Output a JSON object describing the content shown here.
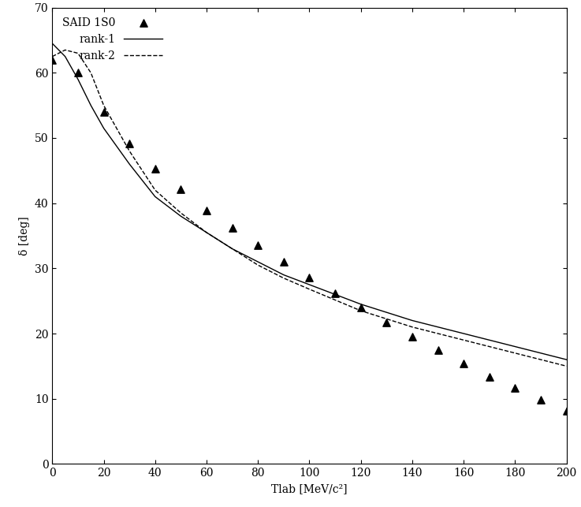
{
  "chart_data": {
    "type": "line",
    "x_label": "Tlab [MeV/c²]",
    "y_label": "δ [deg]",
    "xlim": [
      0,
      200
    ],
    "ylim": [
      0,
      70
    ],
    "xticks": [
      0,
      20,
      40,
      60,
      80,
      100,
      120,
      140,
      160,
      180,
      200
    ],
    "yticks": [
      0,
      10,
      20,
      30,
      40,
      50,
      60,
      70
    ],
    "legend": "upper left",
    "grid": false,
    "series": [
      {
        "name": "SAID 1S0",
        "type": "scatter",
        "marker": "triangle",
        "color": "#000000",
        "x": [
          0,
          10,
          20,
          30,
          40,
          50,
          60,
          70,
          80,
          90,
          100,
          110,
          120,
          130,
          140,
          150,
          160,
          170,
          180,
          190,
          200
        ],
        "values": [
          62,
          60,
          54,
          49.2,
          45.3,
          42.1,
          38.9,
          36.2,
          33.6,
          31.0,
          28.6,
          26.2,
          24.0,
          21.7,
          19.5,
          17.5,
          15.4,
          13.4,
          11.6,
          9.9,
          8.2
        ]
      },
      {
        "name": "rank-1",
        "type": "line",
        "line_style": "solid",
        "color": "#000000",
        "x": [
          0,
          5,
          10,
          15,
          20,
          30,
          40,
          50,
          60,
          70,
          80,
          90,
          100,
          120,
          140,
          160,
          180,
          200
        ],
        "values": [
          64.5,
          62.5,
          59,
          55,
          51.5,
          46,
          41,
          38,
          35.5,
          33,
          31,
          29,
          27.5,
          24.5,
          22,
          20,
          18,
          16
        ]
      },
      {
        "name": "rank-2",
        "type": "line",
        "line_style": "dashed",
        "color": "#000000",
        "x": [
          0,
          5,
          10,
          15,
          20,
          30,
          40,
          50,
          60,
          70,
          80,
          90,
          100,
          120,
          140,
          160,
          180,
          200
        ],
        "values": [
          62.5,
          63.5,
          63,
          60,
          55,
          48,
          42,
          38.5,
          35.5,
          33,
          30.5,
          28.5,
          26.8,
          23.5,
          21,
          19,
          17,
          15
        ]
      }
    ]
  }
}
